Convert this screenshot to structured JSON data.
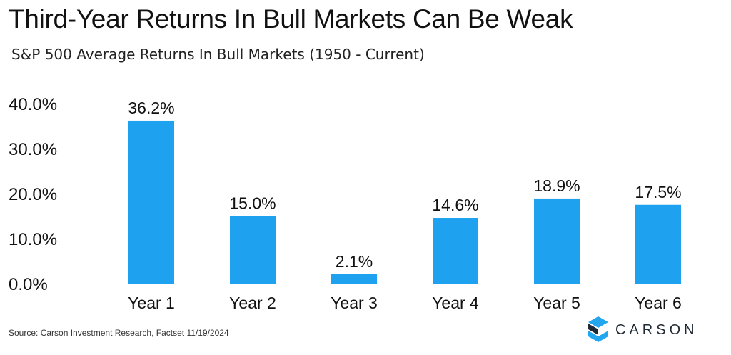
{
  "header": {
    "title": "Third-Year Returns In Bull Markets Can Be Weak",
    "subtitle": "S&P 500 Average Returns In Bull Markets (1950 - Current)"
  },
  "footer": {
    "source": "Source: Carson Investment Research, Factset 11/19/2024",
    "brand_name": "CARSON",
    "brand_icon": "carson-logo-icon"
  },
  "colors": {
    "bar": "#1ea2f0",
    "brand_dark": "#1f2a36",
    "brand_light": "#22a6ee"
  },
  "chart_data": {
    "type": "bar",
    "categories": [
      "Year 1",
      "Year 2",
      "Year 3",
      "Year 4",
      "Year 5",
      "Year 6"
    ],
    "values": [
      36.2,
      15.0,
      2.1,
      14.6,
      18.9,
      17.5
    ],
    "value_labels": [
      "36.2%",
      "15.0%",
      "2.1%",
      "14.6%",
      "18.9%",
      "17.5%"
    ],
    "title": "Third-Year Returns In Bull Markets Can Be Weak",
    "subtitle": "S&P 500 Average Returns In Bull Markets (1950 - Current)",
    "xlabel": "",
    "ylabel": "",
    "ylim": [
      0,
      40
    ],
    "yticks": [
      0,
      10,
      20,
      30,
      40
    ],
    "ytick_labels": [
      "0.0%",
      "10.0%",
      "20.0%",
      "30.0%",
      "40.0%"
    ],
    "grid": false,
    "legend": "none"
  }
}
